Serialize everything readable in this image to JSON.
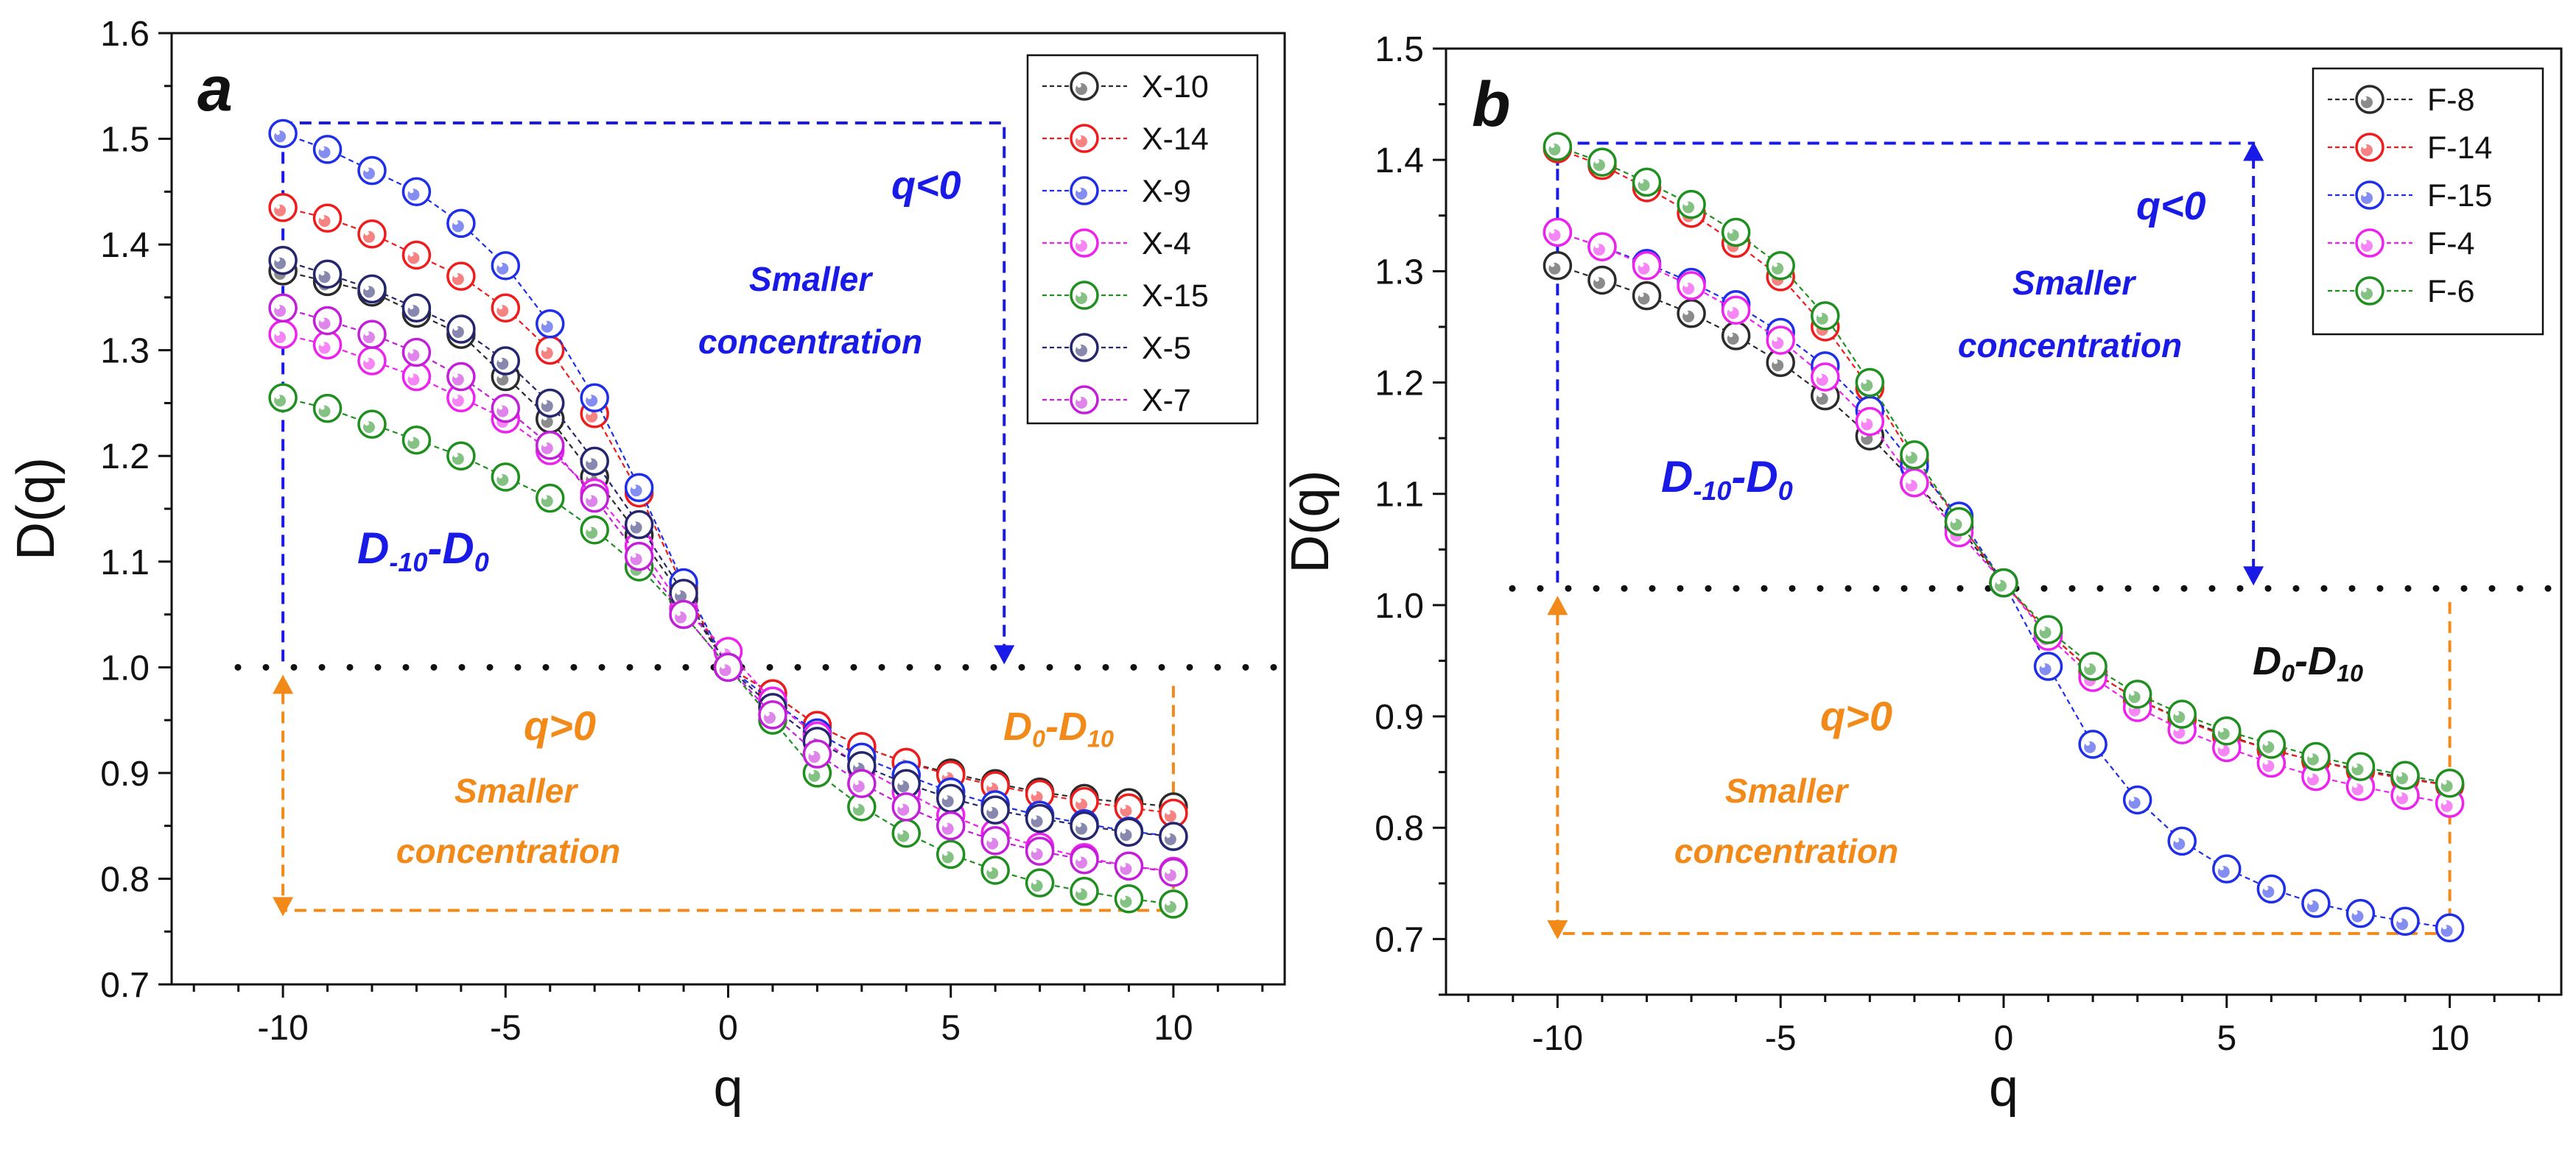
{
  "colors": {
    "black": "#2b2b2b",
    "red": "#ee1c1c",
    "blue": "#1f2fe8",
    "magenta": "#ee22ee",
    "green": "#1f8f1f",
    "navy": "#26266e",
    "violet": "#c31fd9",
    "annotation_blue": "#1a1ae6",
    "annotation_orange": "#f28a1a"
  },
  "chart_data": [
    {
      "type": "line",
      "panel": "a",
      "xlabel": "q",
      "ylabel": "D(q)",
      "xlim": [
        -12.5,
        12.5
      ],
      "ylim": [
        0.7,
        1.6
      ],
      "xticks": [
        -10,
        -5,
        0,
        5,
        10
      ],
      "yticks": [
        0.7,
        0.8,
        0.9,
        1.0,
        1.1,
        1.2,
        1.3,
        1.4,
        1.5,
        1.6
      ],
      "ytick_labels": [
        "0.7",
        "0.8",
        "0.9",
        "1.0",
        "1.1",
        "1.2",
        "1.3",
        "1.4",
        "1.5",
        "1.6"
      ],
      "x": [
        -10,
        -9,
        -8,
        -7,
        -6,
        -5,
        -4,
        -3,
        -2,
        -1,
        0,
        1,
        2,
        3,
        4,
        5,
        6,
        7,
        8,
        9,
        10
      ],
      "legend_position": "top-right",
      "reference_line": 1.0,
      "series": [
        {
          "name": "X-10",
          "color": "black",
          "values": [
            1.375,
            1.365,
            1.355,
            1.335,
            1.315,
            1.275,
            1.235,
            1.18,
            1.125,
            1.065,
            1.0,
            0.975,
            0.945,
            0.925,
            0.91,
            0.9,
            0.89,
            0.882,
            0.876,
            0.872,
            0.868
          ]
        },
        {
          "name": "X-14",
          "color": "red",
          "values": [
            1.435,
            1.425,
            1.41,
            1.39,
            1.37,
            1.34,
            1.3,
            1.24,
            1.165,
            1.075,
            1.0,
            0.975,
            0.945,
            0.925,
            0.91,
            0.898,
            0.888,
            0.88,
            0.873,
            0.867,
            0.862
          ]
        },
        {
          "name": "X-9",
          "color": "blue",
          "values": [
            1.505,
            1.49,
            1.47,
            1.45,
            1.42,
            1.38,
            1.325,
            1.255,
            1.17,
            1.08,
            1.0,
            0.968,
            0.938,
            0.915,
            0.898,
            0.882,
            0.87,
            0.86,
            0.852,
            0.845,
            0.84
          ]
        },
        {
          "name": "X-4",
          "color": "magenta",
          "values": [
            1.315,
            1.305,
            1.29,
            1.275,
            1.255,
            1.235,
            1.205,
            1.165,
            1.115,
            1.055,
            1.015,
            0.968,
            0.935,
            0.905,
            0.882,
            0.86,
            0.843,
            0.83,
            0.82,
            0.812,
            0.807
          ]
        },
        {
          "name": "X-15",
          "color": "green",
          "values": [
            1.255,
            1.245,
            1.23,
            1.215,
            1.2,
            1.18,
            1.16,
            1.13,
            1.095,
            1.05,
            1.0,
            0.95,
            0.9,
            0.868,
            0.843,
            0.823,
            0.808,
            0.796,
            0.788,
            0.781,
            0.776
          ]
        },
        {
          "name": "X-5",
          "color": "navy",
          "values": [
            1.385,
            1.372,
            1.358,
            1.34,
            1.32,
            1.29,
            1.25,
            1.195,
            1.135,
            1.07,
            1.0,
            0.962,
            0.93,
            0.907,
            0.89,
            0.876,
            0.865,
            0.857,
            0.85,
            0.844,
            0.84
          ]
        },
        {
          "name": "X-7",
          "color": "violet",
          "values": [
            1.34,
            1.328,
            1.315,
            1.298,
            1.275,
            1.245,
            1.21,
            1.16,
            1.105,
            1.05,
            1.0,
            0.955,
            0.918,
            0.89,
            0.868,
            0.85,
            0.836,
            0.826,
            0.818,
            0.812,
            0.806
          ]
        }
      ],
      "annotations": {
        "panel_letter": "a",
        "q_neg": "q<0",
        "smaller_top_1": "Smaller",
        "smaller_top_2": "concentration",
        "d_left_main1": "D",
        "d_left_sub1": "-10",
        "d_left_dash": "-D",
        "d_left_sub2": "0",
        "q_pos": "q>0",
        "smaller_bottom_1": "Smaller",
        "smaller_bottom_2": "concentration",
        "d_right_main1": "D",
        "d_right_sub1": "0",
        "d_right_dash": "-D",
        "d_right_sub2": "10"
      }
    },
    {
      "type": "line",
      "panel": "b",
      "xlabel": "q",
      "ylabel": "D(q)",
      "xlim": [
        -12.5,
        12.5
      ],
      "ylim": [
        0.65,
        1.5
      ],
      "xticks": [
        -10,
        -5,
        0,
        5,
        10
      ],
      "yticks": [
        0.7,
        0.8,
        0.9,
        1.0,
        1.1,
        1.2,
        1.3,
        1.4,
        1.5
      ],
      "ytick_labels": [
        "0.7",
        "0.8",
        "0.9",
        "1.0",
        "1.1",
        "1.2",
        "1.3",
        "1.4",
        "1.5"
      ],
      "x": [
        -10,
        -9,
        -8,
        -7,
        -6,
        -5,
        -4,
        -3,
        -2,
        -1,
        0,
        1,
        2,
        3,
        4,
        5,
        6,
        7,
        8,
        9,
        10
      ],
      "legend_position": "top-right",
      "reference_line": 1.015,
      "series": [
        {
          "name": "F-8",
          "color": "black",
          "values": [
            1.305,
            1.292,
            1.278,
            1.262,
            1.242,
            1.218,
            1.188,
            1.152,
            1.11,
            1.07,
            1.02,
            0.975,
            0.94,
            0.915,
            0.898,
            0.883,
            0.87,
            0.86,
            0.852,
            0.845,
            0.838
          ]
        },
        {
          "name": "F-14",
          "color": "red",
          "values": [
            1.41,
            1.395,
            1.375,
            1.352,
            1.325,
            1.295,
            1.25,
            1.195,
            1.13,
            1.075,
            1.02,
            0.975,
            0.94,
            0.915,
            0.897,
            0.882,
            0.87,
            0.86,
            0.851,
            0.844,
            0.838
          ]
        },
        {
          "name": "F-15",
          "color": "blue",
          "values": [
            1.335,
            1.322,
            1.307,
            1.29,
            1.27,
            1.245,
            1.215,
            1.175,
            1.125,
            1.08,
            1.02,
            0.945,
            0.875,
            0.825,
            0.788,
            0.763,
            0.745,
            0.732,
            0.723,
            0.716,
            0.71
          ]
        },
        {
          "name": "F-4",
          "color": "magenta",
          "values": [
            1.335,
            1.322,
            1.305,
            1.287,
            1.265,
            1.238,
            1.205,
            1.165,
            1.11,
            1.065,
            1.02,
            0.972,
            0.935,
            0.908,
            0.888,
            0.872,
            0.858,
            0.846,
            0.837,
            0.829,
            0.822
          ]
        },
        {
          "name": "F-6",
          "color": "green",
          "values": [
            1.412,
            1.398,
            1.38,
            1.36,
            1.335,
            1.305,
            1.26,
            1.2,
            1.135,
            1.075,
            1.02,
            0.978,
            0.945,
            0.92,
            0.902,
            0.887,
            0.875,
            0.864,
            0.855,
            0.847,
            0.84
          ]
        }
      ],
      "annotations": {
        "panel_letter": "b",
        "q_neg": "q<0",
        "smaller_top_1": "Smaller",
        "smaller_top_2": "concentration",
        "d_left_main1": "D",
        "d_left_sub1": "-10",
        "d_left_dash": "-D",
        "d_left_sub2": "0",
        "q_pos": "q>0",
        "smaller_bottom_1": "Smaller",
        "smaller_bottom_2": "concentration",
        "d_right_main1": "D",
        "d_right_sub1": "0",
        "d_right_dash": "-D",
        "d_right_sub2": "10"
      }
    }
  ]
}
